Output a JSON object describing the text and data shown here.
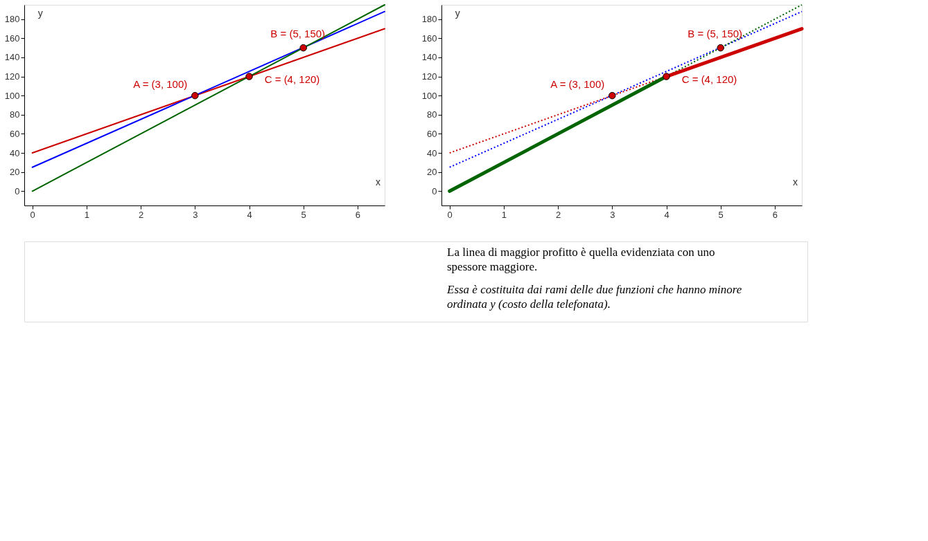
{
  "chart_data": [
    {
      "type": "line",
      "xlabel": "x",
      "ylabel": "y",
      "xlim": [
        -0.15,
        6.5
      ],
      "ylim": [
        -15,
        195
      ],
      "xticks": [
        0,
        1,
        2,
        3,
        4,
        5,
        6
      ],
      "yticks": [
        0,
        20,
        40,
        60,
        80,
        100,
        120,
        140,
        160,
        180
      ],
      "grid": false,
      "line_style": "solid",
      "series": [
        {
          "type": "line",
          "color": "#cc0000",
          "x": [
            0,
            6.5
          ],
          "values": [
            40,
            170
          ]
        },
        {
          "type": "line",
          "color": "#0000ff",
          "x": [
            0,
            6.5
          ],
          "values": [
            25,
            188
          ]
        },
        {
          "type": "line",
          "color": "#006400",
          "x": [
            0,
            6.5
          ],
          "values": [
            0,
            195
          ]
        },
        {
          "type": "scatter",
          "color": "#cc0000",
          "marker": "circle",
          "x": [
            3,
            5,
            4
          ],
          "values": [
            100,
            150,
            120
          ]
        }
      ],
      "annotations": [
        {
          "text": "A = (3, 100)",
          "x": 3,
          "y": 100
        },
        {
          "text": "B = (5, 150)",
          "x": 5,
          "y": 150
        },
        {
          "text": "C = (4, 120)",
          "x": 4,
          "y": 120
        }
      ]
    },
    {
      "type": "line",
      "xlabel": "x",
      "ylabel": "y",
      "xlim": [
        -0.15,
        6.5
      ],
      "ylim": [
        -15,
        195
      ],
      "xticks": [
        0,
        1,
        2,
        3,
        4,
        5,
        6
      ],
      "yticks": [
        0,
        20,
        40,
        60,
        80,
        100,
        120,
        140,
        160,
        180
      ],
      "grid": false,
      "series": [
        {
          "type": "line",
          "color": "#cc0000",
          "line_style": "dotted",
          "x": [
            0,
            4
          ],
          "values": [
            40,
            120
          ]
        },
        {
          "type": "line",
          "color": "#0000ff",
          "line_style": "dotted",
          "x": [
            0,
            6.5
          ],
          "values": [
            25,
            188
          ]
        },
        {
          "type": "line",
          "color": "#006400",
          "line_style": "dotted",
          "x": [
            4,
            6.5
          ],
          "values": [
            120,
            195
          ]
        },
        {
          "type": "line",
          "color": "#006400",
          "line_style": "solid",
          "x": [
            0,
            4
          ],
          "values": [
            0,
            120
          ]
        },
        {
          "type": "line",
          "color": "#cc0000",
          "line_style": "solid",
          "x": [
            4,
            6.5
          ],
          "values": [
            120,
            170
          ]
        },
        {
          "type": "scatter",
          "color": "#cc0000",
          "marker": "circle",
          "x": [
            3,
            5,
            4
          ],
          "values": [
            100,
            150,
            120
          ]
        }
      ],
      "annotations": [
        {
          "text": "A = (3, 100)",
          "x": 3,
          "y": 100
        },
        {
          "text": "B = (5, 150)",
          "x": 5,
          "y": 150
        },
        {
          "text": "C = (4, 120)",
          "x": 4,
          "y": 120
        }
      ]
    },
    {
      "type": "other",
      "annotations": [
        "La linea di maggior profitto è quella evidenziata con uno spessore maggiore.",
        "Essa è costituita dai rami delle due funzioni che hanno minore ordinata y (costo della telefonata)."
      ]
    }
  ]
}
